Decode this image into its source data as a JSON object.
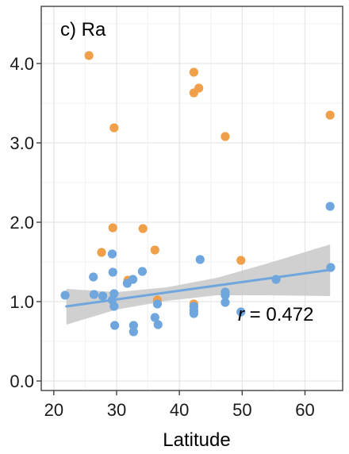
{
  "chart_data": {
    "type": "scatter",
    "panel_label": "c) Ra",
    "xlabel": "Latitude",
    "ylabel": "",
    "xlim": [
      18,
      66
    ],
    "ylim": [
      -0.12,
      4.72
    ],
    "x_ticks": [
      20,
      30,
      40,
      50,
      60
    ],
    "y_ticks": [
      0.0,
      1.0,
      2.0,
      3.0,
      4.0
    ],
    "x_tick_labels": [
      "20",
      "30",
      "40",
      "50",
      "60"
    ],
    "y_tick_labels": [
      "0.0",
      "1.0",
      "2.0",
      "3.0",
      "4.0"
    ],
    "grid": true,
    "annotation": {
      "r_symbol": "r",
      "r_text": " = 0.472"
    },
    "colors": {
      "blue": "#6fa6de",
      "orange": "#f0a04b",
      "trend": "#6fa6de",
      "band": "#c8c8c8"
    },
    "series": [
      {
        "color": "#f0a04b",
        "points": [
          [
            25.6,
            4.1
          ],
          [
            29.6,
            3.19
          ],
          [
            42.3,
            3.89
          ],
          [
            42.3,
            3.63
          ],
          [
            43.1,
            3.69
          ],
          [
            47.3,
            3.08
          ],
          [
            64.0,
            3.35
          ],
          [
            29.4,
            1.93
          ],
          [
            34.2,
            1.92
          ],
          [
            27.6,
            1.62
          ],
          [
            36.1,
            1.65
          ],
          [
            31.8,
            1.27
          ],
          [
            36.5,
            1.02
          ],
          [
            49.8,
            1.52
          ],
          [
            42.3,
            0.97
          ]
        ]
      },
      {
        "color": "#6fa6de",
        "points": [
          [
            21.8,
            1.08
          ],
          [
            26.3,
            1.31
          ],
          [
            26.4,
            1.09
          ],
          [
            27.8,
            1.07
          ],
          [
            29.3,
            1.6
          ],
          [
            29.4,
            1.37
          ],
          [
            29.6,
            1.1
          ],
          [
            29.3,
            1.02
          ],
          [
            29.6,
            0.94
          ],
          [
            29.7,
            0.7
          ],
          [
            31.7,
            1.23
          ],
          [
            32.6,
            1.28
          ],
          [
            32.7,
            0.7
          ],
          [
            32.7,
            0.62
          ],
          [
            34.1,
            1.38
          ],
          [
            36.1,
            0.8
          ],
          [
            36.5,
            0.97
          ],
          [
            36.6,
            0.71
          ],
          [
            42.3,
            0.94
          ],
          [
            42.3,
            0.89
          ],
          [
            42.3,
            0.85
          ],
          [
            43.3,
            1.53
          ],
          [
            47.3,
            1.12
          ],
          [
            47.3,
            1.08
          ],
          [
            47.3,
            0.99
          ],
          [
            49.8,
            0.87
          ],
          [
            55.4,
            1.28
          ],
          [
            64.0,
            2.2
          ],
          [
            64.1,
            1.43
          ]
        ]
      }
    ],
    "trend_line": {
      "x": [
        22,
        64
      ],
      "y": [
        0.94,
        1.4
      ]
    },
    "confidence_band": {
      "x": [
        22,
        30,
        38,
        46,
        54,
        64
      ],
      "upper": [
        1.16,
        1.12,
        1.18,
        1.3,
        1.48,
        1.72
      ],
      "lower": [
        0.71,
        0.9,
        1.01,
        1.08,
        1.08,
        1.07
      ]
    }
  }
}
